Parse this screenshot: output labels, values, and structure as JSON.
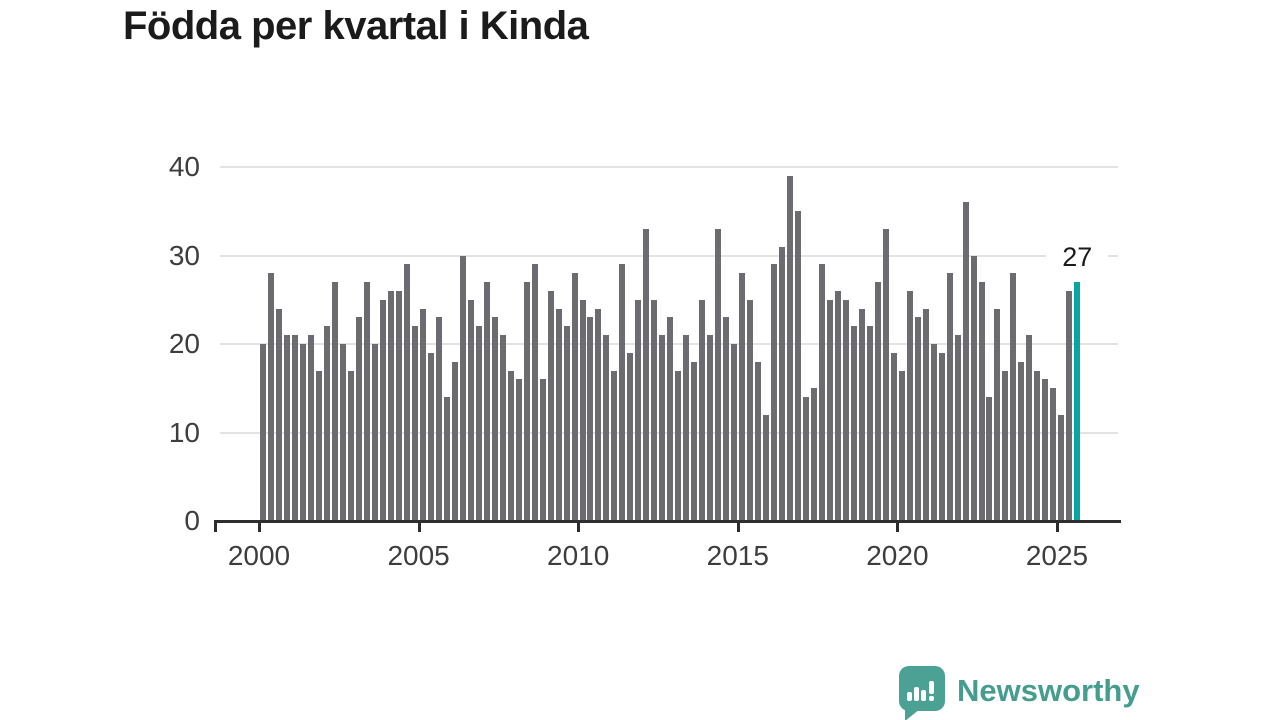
{
  "title": "Födda per kvartal i Kinda",
  "annotation": {
    "highlight_value_label": "27"
  },
  "axes": {
    "y_ticks": [
      "0",
      "10",
      "20",
      "30",
      "40"
    ],
    "x_ticks": [
      "2000",
      "2005",
      "2010",
      "2015",
      "2020",
      "2025"
    ]
  },
  "colors": {
    "bar": "#6b6b70",
    "highlight": "#0aa5a1",
    "grid": "#e3e3e3",
    "axis": "#2e2e2e",
    "title_text": "#1b1b1b",
    "tick_text": "#3d3d3d",
    "brand": "#459d90"
  },
  "branding": {
    "name": "Newsworthy",
    "icon": "speech-bubble-bar-chart-icon"
  },
  "chart_data": {
    "type": "bar",
    "title": "Födda per kvartal i Kinda",
    "x_start": "2000-Q1",
    "x_end": "2025-Q3",
    "frequency": "quarterly",
    "x_tick_labels": [
      "2000",
      "2005",
      "2010",
      "2015",
      "2020",
      "2025"
    ],
    "y_tick_labels": [
      "0",
      "10",
      "20",
      "30",
      "40"
    ],
    "ylim": [
      0,
      40
    ],
    "grid": true,
    "legend": false,
    "values": [
      20,
      28,
      24,
      21,
      21,
      20,
      21,
      17,
      22,
      27,
      20,
      17,
      23,
      27,
      20,
      25,
      26,
      26,
      29,
      22,
      24,
      19,
      23,
      14,
      18,
      30,
      25,
      22,
      27,
      23,
      21,
      17,
      16,
      27,
      29,
      16,
      26,
      24,
      22,
      28,
      25,
      23,
      24,
      21,
      17,
      29,
      19,
      25,
      33,
      25,
      21,
      23,
      17,
      21,
      18,
      25,
      21,
      33,
      23,
      20,
      28,
      25,
      18,
      12,
      29,
      31,
      39,
      35,
      14,
      15,
      29,
      25,
      26,
      25,
      22,
      24,
      22,
      27,
      33,
      19,
      17,
      26,
      23,
      24,
      20,
      19,
      28,
      21,
      36,
      30,
      27,
      14,
      24,
      17,
      28,
      18,
      21,
      17,
      16,
      15,
      12,
      26,
      27
    ],
    "highlight_index": 102,
    "highlight_value": 27
  }
}
